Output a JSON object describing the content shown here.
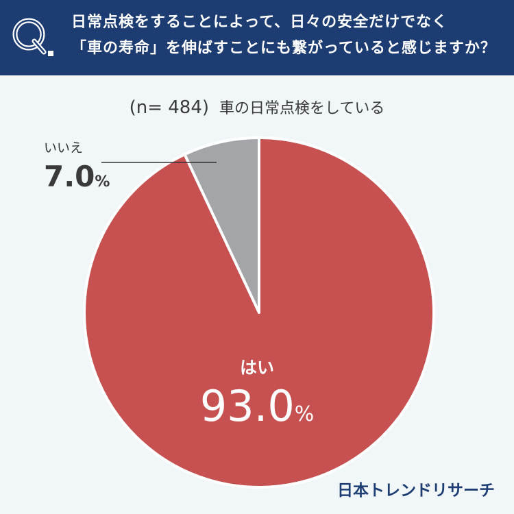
{
  "header": {
    "question_line1": "日常点検をすることによって、日々の安全だけでなく",
    "question_line2": "「車の寿命」を伸ばすことにも繋がっていると感じますか？"
  },
  "subtitle": {
    "n_text": "(n= 484)",
    "label": "車の日常点検をしている"
  },
  "chart_data": {
    "type": "pie",
    "slices": [
      {
        "label": "はい",
        "value": 93.0,
        "value_text": "93.0",
        "color": "#c75050"
      },
      {
        "label": "いいえ",
        "value": 7.0,
        "value_text": "7.0",
        "color": "#a3a5a9"
      }
    ],
    "unit": "%"
  },
  "brand": "日本トレンドリサーチ"
}
